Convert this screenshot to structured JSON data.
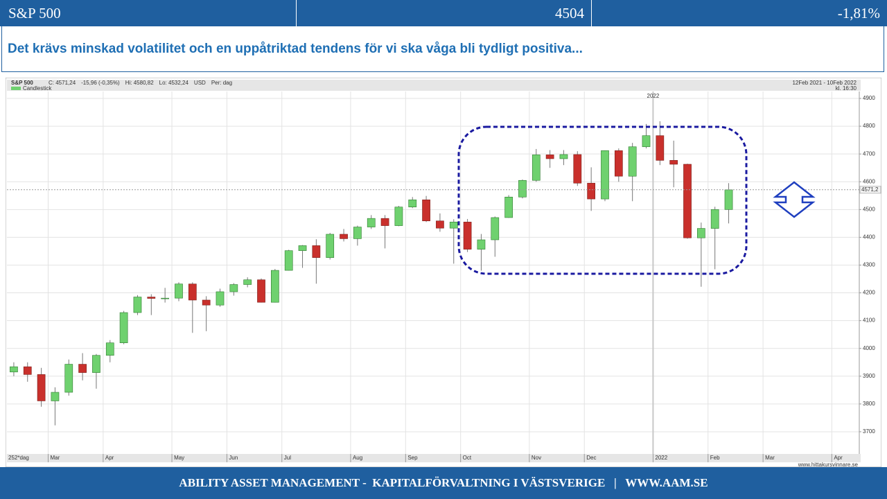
{
  "header": {
    "name": "S&P 500",
    "value": "4504",
    "change": "-1,81%"
  },
  "headline": "Det krävs minskad volatilitet och en uppåtriktad tendens för vi ska våga bli tydligt positiva...",
  "chart_data": {
    "type": "candlestick",
    "title": "S&P 500",
    "quote": [
      "C: 4571,24",
      "-15,96 (-0,35%)",
      "Hi: 4580,82",
      "Lo: 4532,24",
      "USD",
      "Per: dag"
    ],
    "period": "12Feb 2021 - 10Feb 2022",
    "time": "kl. 16:30",
    "x_left_label": "252*dag",
    "year_marker": "2022",
    "source": "www.hittakursvinnare.se",
    "categories": [
      null,
      null,
      null,
      "Mar",
      null,
      null,
      null,
      "Apr",
      null,
      null,
      null,
      null,
      "May",
      null,
      null,
      null,
      "Jun",
      null,
      null,
      null,
      "Jul",
      null,
      null,
      null,
      null,
      "Aug",
      null,
      null,
      null,
      "Sep",
      null,
      null,
      null,
      "Oct",
      null,
      null,
      null,
      null,
      "Nov",
      null,
      null,
      null,
      "Dec",
      null,
      null,
      null,
      null,
      "2022",
      null,
      null,
      null,
      "Feb",
      null,
      null,
      null,
      "Mar",
      null,
      null,
      null,
      null,
      "Apr",
      null
    ],
    "series": [
      {
        "name": "Candlestick",
        "up_color": "#6fd16f",
        "down_color": "#c9302c",
        "open": [
          3915,
          3934,
          3906,
          3811,
          3842,
          3943,
          3913,
          3975,
          4020,
          4129,
          4185,
          4180,
          4181,
          4232,
          4174,
          4156,
          4204,
          4230,
          4247,
          4166,
          4281,
          4352,
          4370,
          4327,
          4411,
          4395,
          4437,
          4468,
          4442,
          4509,
          4535,
          4459,
          4433,
          4455,
          4357,
          4391,
          4471,
          4545,
          4605,
          4697,
          4683,
          4698,
          4595,
          4538,
          4712,
          4620,
          4726,
          4766,
          4677,
          4663,
          4398,
          4432,
          4500,
          null,
          null,
          null,
          null,
          null,
          null,
          null,
          null,
          null
        ],
        "high": [
          3950,
          3950,
          3930,
          3860,
          3960,
          3983,
          3980,
          4030,
          4135,
          4192,
          4195,
          4218,
          4238,
          4238,
          4188,
          4215,
          4235,
          4256,
          4252,
          4286,
          4355,
          4372,
          4393,
          4416,
          4430,
          4442,
          4480,
          4480,
          4513,
          4545,
          4549,
          4486,
          4465,
          4466,
          4412,
          4475,
          4552,
          4608,
          4718,
          4714,
          4714,
          4710,
          4652,
          4713,
          4720,
          4740,
          4808,
          4818,
          4748,
          4665,
          4453,
          4510,
          4595,
          null,
          null,
          null,
          null,
          null,
          null,
          null,
          null,
          null
        ],
        "low": [
          3900,
          3880,
          3790,
          3723,
          3830,
          3885,
          3855,
          3950,
          4015,
          4120,
          4120,
          4165,
          4170,
          4056,
          4062,
          4150,
          4190,
          4220,
          4165,
          4165,
          4280,
          4290,
          4233,
          4320,
          4385,
          4370,
          4430,
          4360,
          4440,
          4505,
          4455,
          4420,
          4305,
          4347,
          4280,
          4330,
          4470,
          4540,
          4600,
          4650,
          4660,
          4585,
          4495,
          4530,
          4600,
          4530,
          4720,
          4660,
          4580,
          4395,
          4222,
          4285,
          4450,
          null,
          null,
          null,
          null,
          null,
          null,
          null,
          null,
          null
        ],
        "close": [
          3934,
          3906,
          3811,
          3842,
          3943,
          3913,
          3975,
          4020,
          4129,
          4185,
          4180,
          4181,
          4232,
          4174,
          4156,
          4204,
          4230,
          4247,
          4166,
          4281,
          4352,
          4370,
          4327,
          4411,
          4395,
          4437,
          4468,
          4442,
          4509,
          4535,
          4459,
          4433,
          4455,
          4357,
          4391,
          4471,
          4545,
          4605,
          4697,
          4683,
          4698,
          4595,
          4538,
          4712,
          4620,
          4726,
          4766,
          4677,
          4663,
          4398,
          4432,
          4500,
          4571,
          null,
          null,
          null,
          null,
          null,
          null,
          null,
          null,
          null
        ]
      }
    ],
    "last_price": {
      "value": 4571.2,
      "label": "4571,2"
    },
    "ylim": [
      3620,
      4925
    ],
    "yticks": [
      3700,
      3800,
      3900,
      4000,
      4100,
      4200,
      4300,
      4400,
      4500,
      4600,
      4700,
      4800,
      4900
    ],
    "grid": true
  },
  "footer": "ABILITY ASSET MANAGEMENT -  KAPITALFÖRVALTNING I VÄSTSVERIGE   |   WWW.AAM.SE"
}
